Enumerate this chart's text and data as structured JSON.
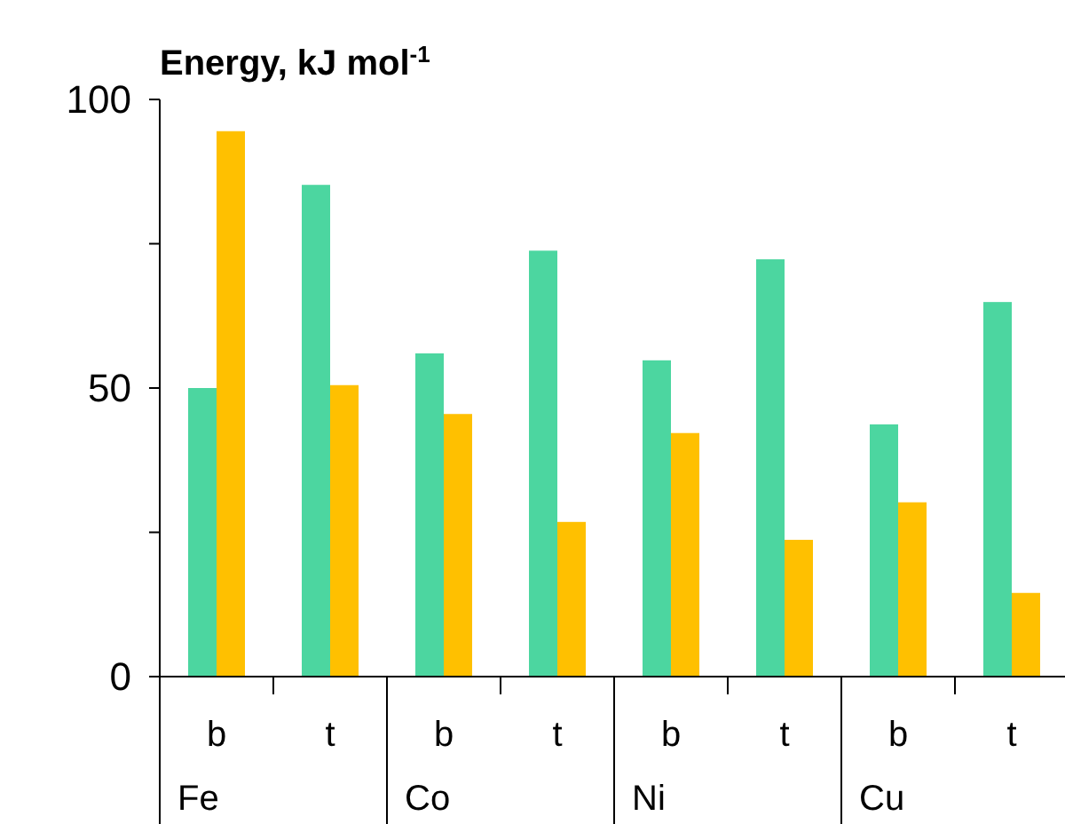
{
  "chart_data": {
    "type": "bar",
    "title": "Energy, kJ mol$^{-1}$",
    "categories": [
      "b",
      "t",
      "b",
      "t",
      "b",
      "t",
      "b",
      "t"
    ],
    "series": [
      {
        "color": "#4cd6a0",
        "values": [
          50,
          85.2,
          56,
          73.8,
          54.8,
          72.3,
          43.7,
          64.9
        ]
      },
      {
        "color": "#ffc000",
        "values": [
          94.5,
          50.5,
          45.5,
          26.8,
          42.2,
          23.7,
          30.2,
          14.5
        ]
      }
    ],
    "ylim": [
      0,
      100
    ],
    "yticks": [
      0,
      {
        "value": 25,
        "label": null
      },
      50,
      {
        "value": 75,
        "label": null
      },
      100
    ],
    "annotations": [
      "Fe",
      "Co",
      "Ni",
      "Cu"
    ]
  }
}
